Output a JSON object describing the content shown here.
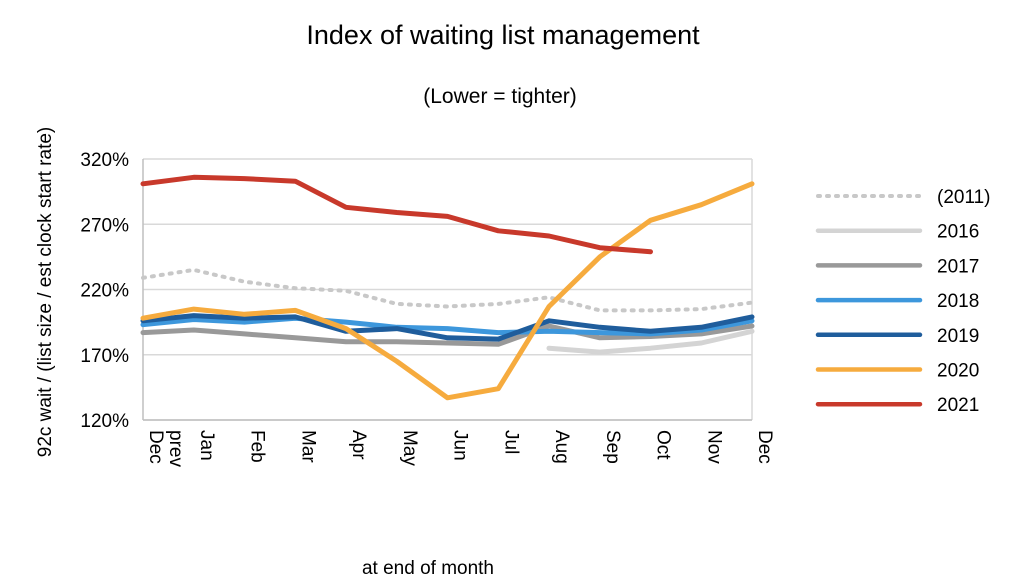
{
  "chart_data": {
    "type": "line",
    "title": "Index of waiting list management",
    "subtitle": "(Lower = tighter)",
    "xlabel": "at end of month",
    "ylabel": "92c wait / (list size / est clock start rate)",
    "categories": [
      "Dec prev",
      "Jan",
      "Feb",
      "Mar",
      "Apr",
      "May",
      "Jun",
      "Jul",
      "Aug",
      "Sep",
      "Oct",
      "Nov",
      "Dec"
    ],
    "ylim": [
      120,
      320
    ],
    "yticks": [
      120,
      170,
      220,
      270,
      320
    ],
    "ytick_labels": [
      "120%",
      "170%",
      "220%",
      "270%",
      "320%"
    ],
    "grid": "horizontal",
    "legend": "right",
    "series": [
      {
        "name": "(2011)",
        "color": "#c8c8c8",
        "dashed": true,
        "values": [
          229,
          235,
          226,
          221,
          219,
          209,
          207,
          209,
          214,
          204,
          204,
          205,
          210
        ]
      },
      {
        "name": "2016",
        "color": "#d4d4d4",
        "dashed": false,
        "values": [
          null,
          null,
          null,
          null,
          null,
          null,
          null,
          null,
          175,
          172,
          175,
          179,
          188
        ]
      },
      {
        "name": "2017",
        "color": "#999999",
        "dashed": false,
        "values": [
          187,
          189,
          186,
          183,
          180,
          180,
          179,
          178,
          192,
          183,
          184,
          186,
          192
        ]
      },
      {
        "name": "2018",
        "color": "#3d97dc",
        "dashed": false,
        "values": [
          193,
          197,
          195,
          198,
          195,
          191,
          190,
          187,
          188,
          187,
          186,
          189,
          196
        ]
      },
      {
        "name": "2019",
        "color": "#1f5d9c",
        "dashed": false,
        "values": [
          196,
          200,
          198,
          199,
          188,
          190,
          183,
          182,
          196,
          191,
          188,
          191,
          199
        ]
      },
      {
        "name": "2020",
        "color": "#f6ab3e",
        "dashed": false,
        "values": [
          198,
          205,
          201,
          204,
          190,
          165,
          137,
          144,
          207,
          245,
          273,
          285,
          301
        ]
      },
      {
        "name": "2021",
        "color": "#c8392b",
        "dashed": false,
        "values": [
          301,
          306,
          305,
          303,
          283,
          279,
          276,
          265,
          261,
          252,
          249,
          null,
          null
        ]
      }
    ]
  }
}
